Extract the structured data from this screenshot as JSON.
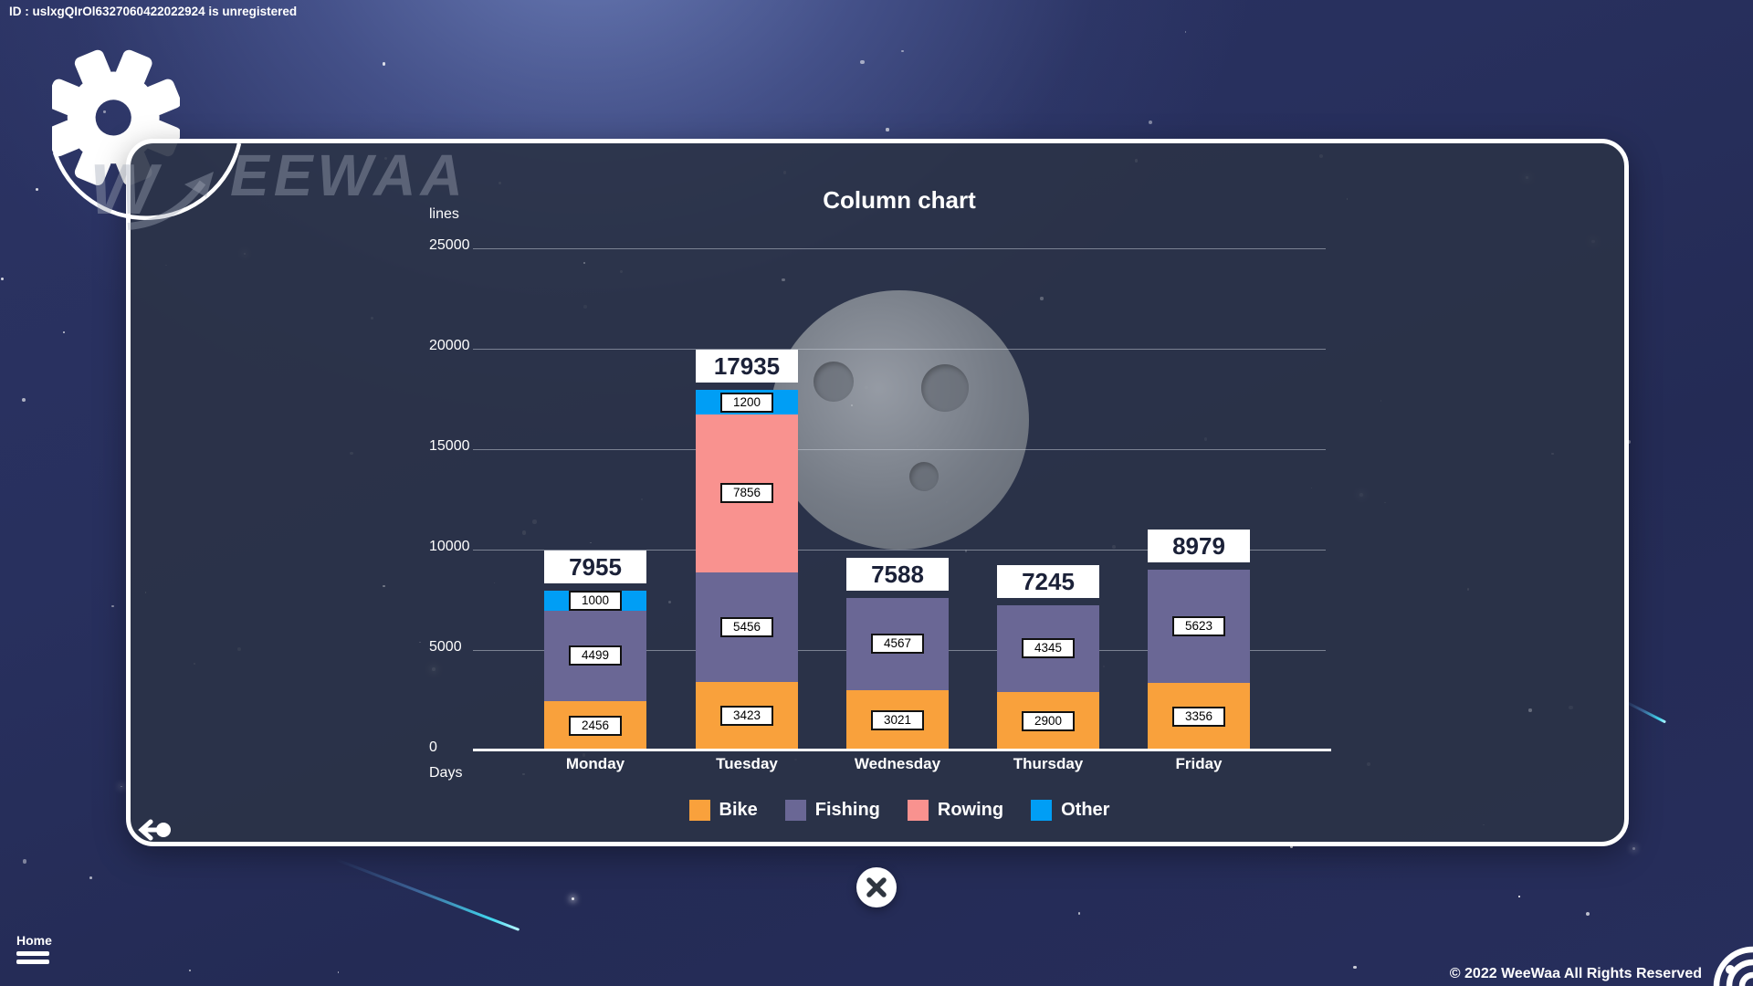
{
  "app": {
    "id_banner": "ID : uslxgQIrOl6327060422022924 is unregistered",
    "logo": {
      "letter": "W",
      "wordmark": "EEWAA"
    },
    "footer": {
      "home_label": "Home",
      "copyright": "© 2022 WeeWaa All Rights Reserved"
    }
  },
  "chart_data": {
    "type": "bar",
    "stacked": true,
    "title": "Column chart",
    "ylabel": "lines",
    "xlabel": "Days",
    "ylim": [
      0,
      25000
    ],
    "yticks": [
      0,
      5000,
      10000,
      15000,
      20000,
      25000
    ],
    "grid": true,
    "legend_position": "bottom",
    "categories": [
      "Monday",
      "Tuesday",
      "Wednesday",
      "Thursday",
      "Friday"
    ],
    "series": [
      {
        "name": "Bike",
        "color": "#F9A13C",
        "values": [
          2456,
          3423,
          3021,
          2900,
          3356
        ]
      },
      {
        "name": "Fishing",
        "color": "#6A6795",
        "values": [
          4499,
          5456,
          4567,
          4345,
          5623
        ]
      },
      {
        "name": "Rowing",
        "color": "#F9928F",
        "values": [
          0,
          7856,
          0,
          0,
          0
        ]
      },
      {
        "name": "Other",
        "color": "#009EF5",
        "values": [
          1000,
          1200,
          0,
          0,
          0
        ]
      }
    ],
    "totals": [
      7955,
      17935,
      7588,
      7245,
      8979
    ]
  }
}
